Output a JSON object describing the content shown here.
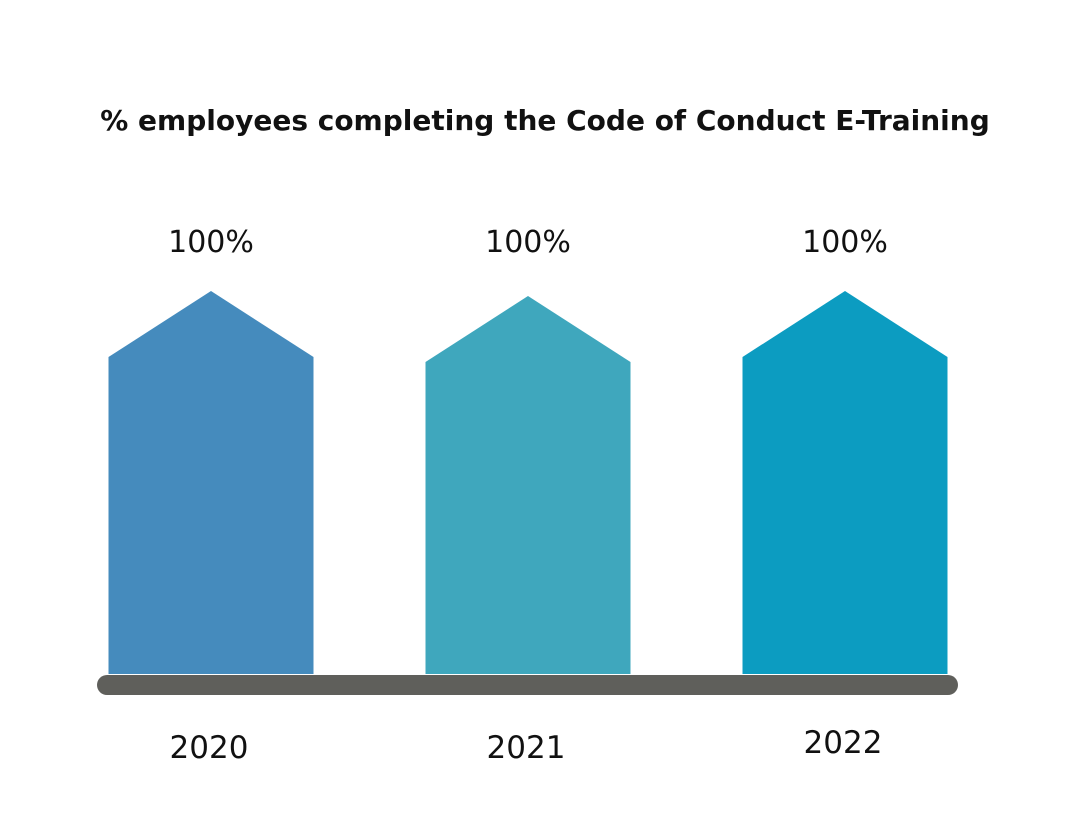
{
  "chart_data": {
    "type": "bar",
    "title": "% employees completing the Code of Conduct E-Training",
    "categories": [
      "2020",
      "2021",
      "2022"
    ],
    "values": [
      100,
      100,
      100
    ],
    "value_labels": [
      "100%",
      "100%",
      "100%"
    ],
    "value_unit": "%",
    "ylim": [
      0,
      100
    ],
    "bar_shape": "arrow-up",
    "colors": [
      "#458BBD",
      "#3FA7BD",
      "#0C9CC1"
    ],
    "baseline_color": "#5F5F5B",
    "grid": false,
    "legend": "none"
  }
}
